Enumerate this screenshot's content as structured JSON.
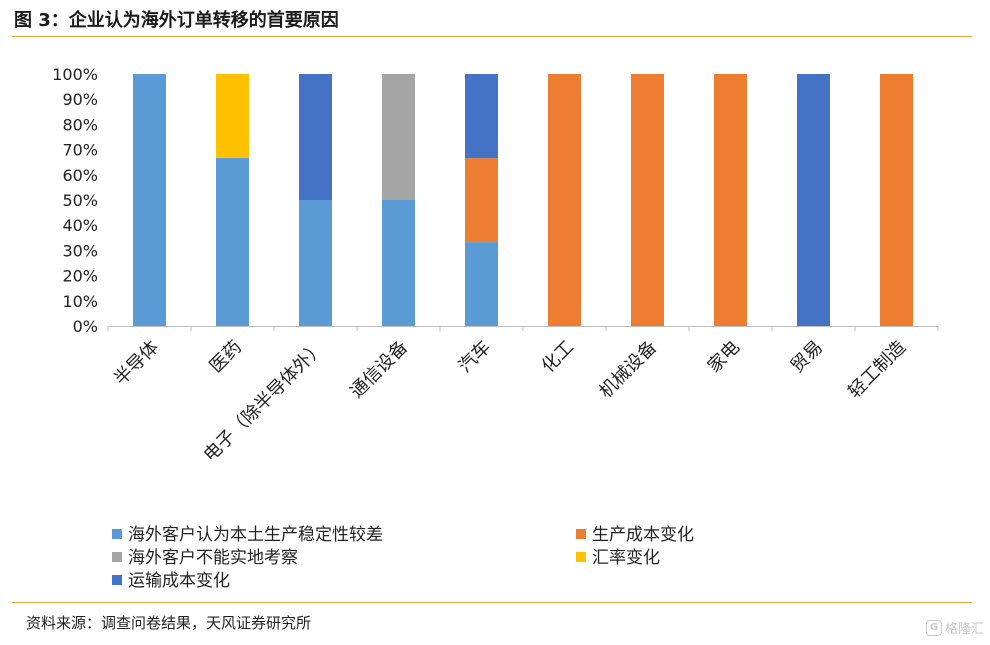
{
  "header": {
    "title": "图 3：企业认为海外订单转移的首要原因"
  },
  "chart_data": {
    "type": "bar",
    "stacked": true,
    "title": "",
    "xlabel": "",
    "ylabel": "",
    "ylim": [
      0,
      100
    ],
    "y_ticks": [
      "0%",
      "10%",
      "20%",
      "30%",
      "40%",
      "50%",
      "60%",
      "70%",
      "80%",
      "90%",
      "100%"
    ],
    "categories": [
      "半导体",
      "医药",
      "电子（除半导体外）",
      "通信设备",
      "汽车",
      "化工",
      "机械设备",
      "家电",
      "贸易",
      "轻工制造"
    ],
    "series": [
      {
        "name": "海外客户认为本土生产稳定性较差",
        "color": "#5b9bd5",
        "values": [
          100,
          66.7,
          50,
          50,
          33.3,
          0,
          0,
          0,
          0,
          0
        ]
      },
      {
        "name": "生产成本变化",
        "color": "#ed7d31",
        "values": [
          0,
          0,
          0,
          0,
          33.3,
          100,
          100,
          100,
          0,
          100
        ]
      },
      {
        "name": "海外客户不能实地考察",
        "color": "#a5a5a5",
        "values": [
          0,
          0,
          0,
          50,
          0,
          0,
          0,
          0,
          0,
          0
        ]
      },
      {
        "name": "汇率变化",
        "color": "#ffc000",
        "values": [
          0,
          33.3,
          0,
          0,
          0,
          0,
          0,
          0,
          0,
          0
        ]
      },
      {
        "name": "运输成本变化",
        "color": "#4472c4",
        "values": [
          0,
          0,
          50,
          0,
          33.4,
          0,
          0,
          0,
          100,
          0
        ]
      }
    ],
    "grid": false,
    "legend": "bottom"
  },
  "footer": {
    "source": "资料来源：调查问卷结果，天风证券研究所",
    "watermark": "格隆汇",
    "watermark_mark": "G"
  }
}
